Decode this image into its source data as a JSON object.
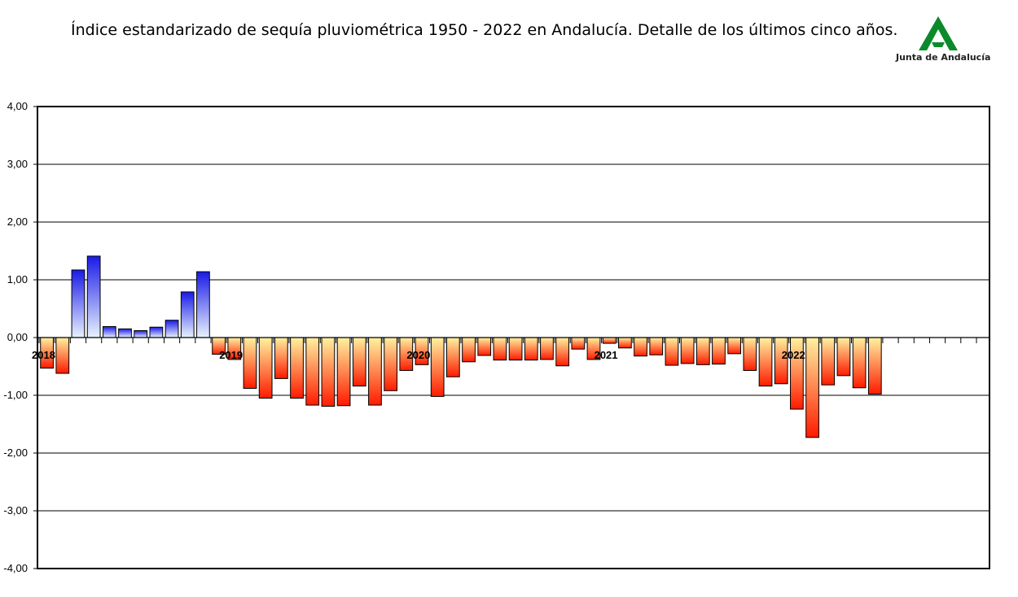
{
  "title": "Índice estandarizado de sequía pluviométrica 1950 - 2022 en Andalucía. Detalle de los últimos cinco años.",
  "logo": {
    "text": "Junta de Andalucía",
    "color": "#0b8a2b"
  },
  "chart_data": {
    "type": "bar",
    "title": "Índice estandarizado de sequía pluviométrica 1950 - 2022 en Andalucía. Detalle de los últimos cinco años.",
    "xlabel": "",
    "ylabel": "",
    "ylim": [
      -4,
      4
    ],
    "yticks": [
      "4,00",
      "3,00",
      "2,00",
      "1,00",
      "0,00",
      "-1,00",
      "-2,00",
      "-3,00",
      "-4,00"
    ],
    "year_labels": [
      {
        "label": "2018",
        "month_index": 0
      },
      {
        "label": "2019",
        "month_index": 12
      },
      {
        "label": "2020",
        "month_index": 24
      },
      {
        "label": "2021",
        "month_index": 36
      },
      {
        "label": "2022",
        "month_index": 48
      }
    ],
    "total_months": 60,
    "values": [
      -0.53,
      -0.62,
      1.17,
      1.41,
      0.19,
      0.15,
      0.12,
      0.18,
      0.3,
      0.79,
      1.14,
      -0.29,
      -0.38,
      -0.88,
      -1.05,
      -0.71,
      -1.05,
      -1.17,
      -1.19,
      -1.18,
      -0.84,
      -1.17,
      -0.92,
      -0.57,
      -0.47,
      -1.02,
      -0.68,
      -0.42,
      -0.31,
      -0.39,
      -0.39,
      -0.39,
      -0.38,
      -0.49,
      -0.2,
      -0.38,
      -0.1,
      -0.18,
      -0.32,
      -0.3,
      -0.48,
      -0.45,
      -0.47,
      -0.46,
      -0.28,
      -0.57,
      -0.84,
      -0.8,
      -1.24,
      -1.73,
      -0.82,
      -0.66,
      -0.87,
      -0.98
    ],
    "grid": true,
    "legend": "none",
    "colors": {
      "positive_top": "#1a1ae6",
      "positive_bottom": "#e8f2ff",
      "negative_top": "#fff2a0",
      "negative_bottom": "#ff1a00",
      "grid": "#000000",
      "axis": "#000000"
    }
  }
}
